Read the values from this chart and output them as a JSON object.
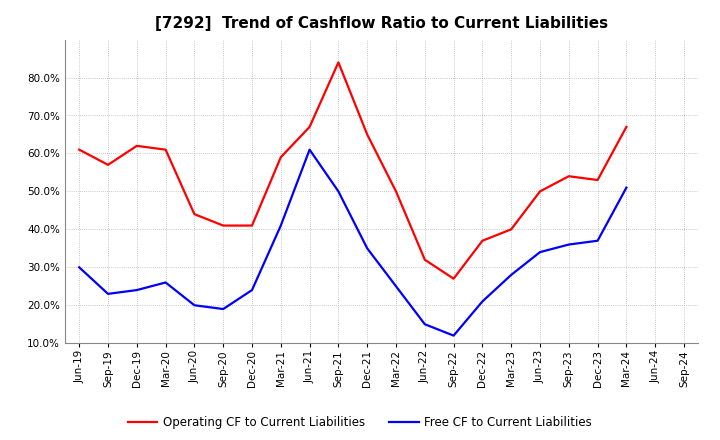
{
  "title": "[7292]  Trend of Cashflow Ratio to Current Liabilities",
  "x_labels": [
    "Jun-19",
    "Sep-19",
    "Dec-19",
    "Mar-20",
    "Jun-20",
    "Sep-20",
    "Dec-20",
    "Mar-21",
    "Jun-21",
    "Sep-21",
    "Dec-21",
    "Mar-22",
    "Jun-22",
    "Sep-22",
    "Dec-22",
    "Mar-23",
    "Jun-23",
    "Sep-23",
    "Dec-23",
    "Mar-24",
    "Jun-24",
    "Sep-24"
  ],
  "operating_cf": [
    0.61,
    0.57,
    0.62,
    0.61,
    0.44,
    0.41,
    0.41,
    0.59,
    0.67,
    0.84,
    0.65,
    0.5,
    0.32,
    0.27,
    0.37,
    0.4,
    0.5,
    0.54,
    0.53,
    0.67,
    null,
    null
  ],
  "free_cf": [
    0.3,
    0.23,
    0.24,
    0.26,
    0.2,
    0.19,
    0.24,
    0.41,
    0.61,
    0.5,
    0.35,
    0.25,
    0.15,
    0.12,
    0.21,
    0.28,
    0.34,
    0.36,
    0.37,
    0.51,
    null,
    null
  ],
  "operating_color": "#FF0000",
  "free_color": "#0000FF",
  "background_color": "#FFFFFF",
  "plot_bg_color": "#FFFFFF",
  "grid_color": "#999999",
  "ylim_min": 0.1,
  "ylim_max": 0.9,
  "yticks": [
    0.1,
    0.2,
    0.3,
    0.4,
    0.5,
    0.6,
    0.7,
    0.8
  ],
  "legend_operating": "Operating CF to Current Liabilities",
  "legend_free": "Free CF to Current Liabilities",
  "title_fontsize": 11,
  "tick_fontsize": 7.5,
  "legend_fontsize": 8.5,
  "line_width": 1.6
}
